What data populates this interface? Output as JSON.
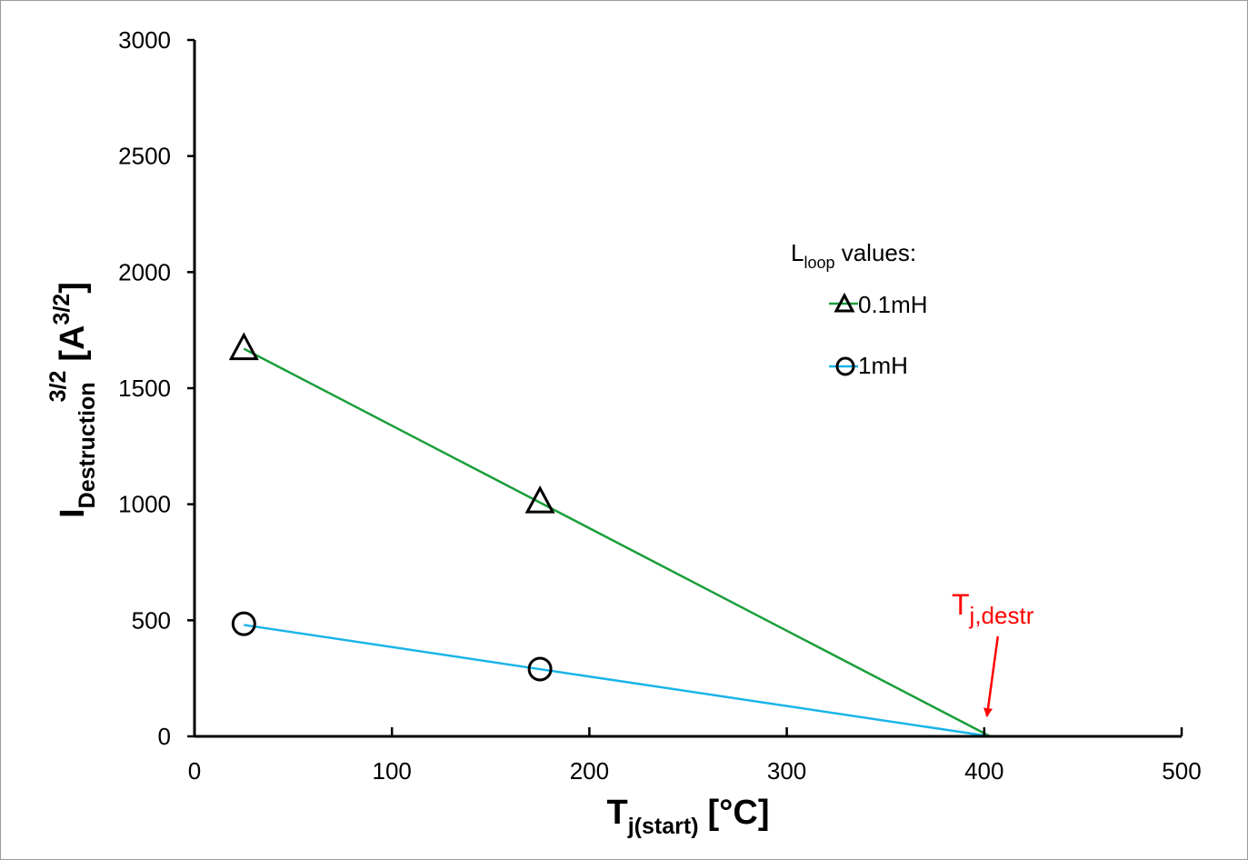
{
  "chart_data": {
    "type": "scatter",
    "x_axis": {
      "label_main": "T",
      "label_sub": "j(start)",
      "label_unit": "[°C]",
      "range": [
        0,
        500
      ],
      "ticks": [
        0,
        100,
        200,
        300,
        400,
        500
      ],
      "tick_labels": [
        "0",
        "100",
        "200",
        "300",
        "400",
        "500"
      ]
    },
    "y_axis": {
      "label_main": "I",
      "label_sub": "Destruction",
      "label_sup": "3/2",
      "label_unit_open": "[A",
      "label_unit_sup": "3/2",
      "label_unit_close": "]",
      "range": [
        0,
        3000
      ],
      "ticks": [
        0,
        500,
        1000,
        1500,
        2000,
        2500,
        3000
      ],
      "tick_labels": [
        "0",
        "500",
        "1000",
        "1500",
        "2000",
        "2500",
        "3000"
      ]
    },
    "grid": false,
    "legend": {
      "title_main": "L",
      "title_sub": "loop",
      "title_rest": " values:",
      "placement": "top-right"
    },
    "series": [
      {
        "name": "0.1mH",
        "marker": "triangle",
        "line_color": "#1a9e3a",
        "points": [
          {
            "x": 25,
            "y": 1670
          },
          {
            "x": 175,
            "y": 1010
          }
        ],
        "fit_line": [
          {
            "x": 25,
            "y": 1670
          },
          {
            "x": 403,
            "y": 0
          }
        ]
      },
      {
        "name": "1mH",
        "marker": "circle",
        "line_color": "#1ab4e8",
        "points": [
          {
            "x": 25,
            "y": 485
          },
          {
            "x": 175,
            "y": 290
          }
        ],
        "fit_line": [
          {
            "x": 25,
            "y": 480
          },
          {
            "x": 403,
            "y": 0
          }
        ]
      }
    ],
    "annotation": {
      "main": "T",
      "sub": "j,destr",
      "color": "#ff0000",
      "arrow_target": {
        "x": 400,
        "y": 0
      }
    }
  }
}
